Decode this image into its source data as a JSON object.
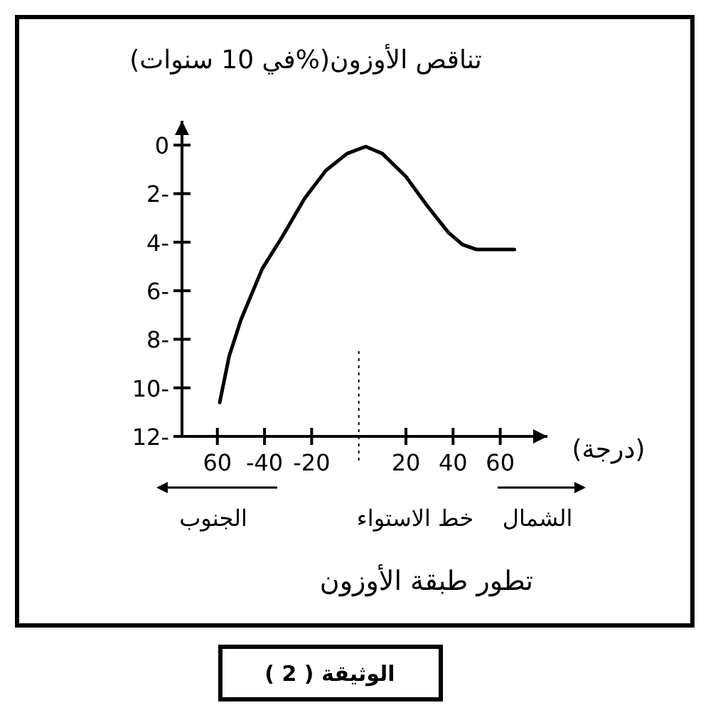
{
  "chart_data": {
    "type": "line",
    "title": "تطور طبقة الأوزون",
    "xlabel": "(درجة)",
    "ylabel": "تناقص الأوزون(%في 10 سنوات)",
    "annotations": [
      "الجنوب",
      "خط الاستواء",
      "الشمال",
      "الوثيقة ( 2 )"
    ],
    "x": [
      -59,
      -55,
      -50,
      -41,
      -32,
      -23,
      -14,
      -5,
      3,
      10,
      20,
      29,
      38,
      44,
      50,
      58,
      66
    ],
    "series": [
      {
        "color": "#000000",
        "values": [
          -10.6,
          -8.7,
          -7.2,
          -5.1,
          -3.7,
          -2.2,
          -1.05,
          -0.35,
          -0.06,
          -0.35,
          -1.3,
          -2.5,
          -3.6,
          -4.1,
          -4.3,
          -4.3,
          -4.3
        ]
      }
    ],
    "xlim": [
      -75,
      80
    ],
    "ylim": [
      -12,
      1
    ],
    "xticks": [
      {
        "value": -60,
        "label": "60"
      },
      {
        "value": -40,
        "label": "-40"
      },
      {
        "value": -20,
        "label": "-20"
      },
      {
        "value": 20,
        "label": "20"
      },
      {
        "value": 40,
        "label": "40"
      },
      {
        "value": 60,
        "label": "60"
      }
    ],
    "yticks": [
      0,
      {
        "value": -2,
        "label": "2-"
      },
      {
        "value": -4,
        "label": "4-"
      },
      {
        "value": -6,
        "label": "6-"
      },
      {
        "value": -8,
        "label": "8-"
      },
      {
        "value": -10,
        "label": "10-"
      },
      {
        "value": -12,
        "label": "12-"
      }
    ],
    "ref_lines": [
      {
        "axis": "x",
        "value": 0,
        "line_style": "dotted"
      }
    ]
  }
}
